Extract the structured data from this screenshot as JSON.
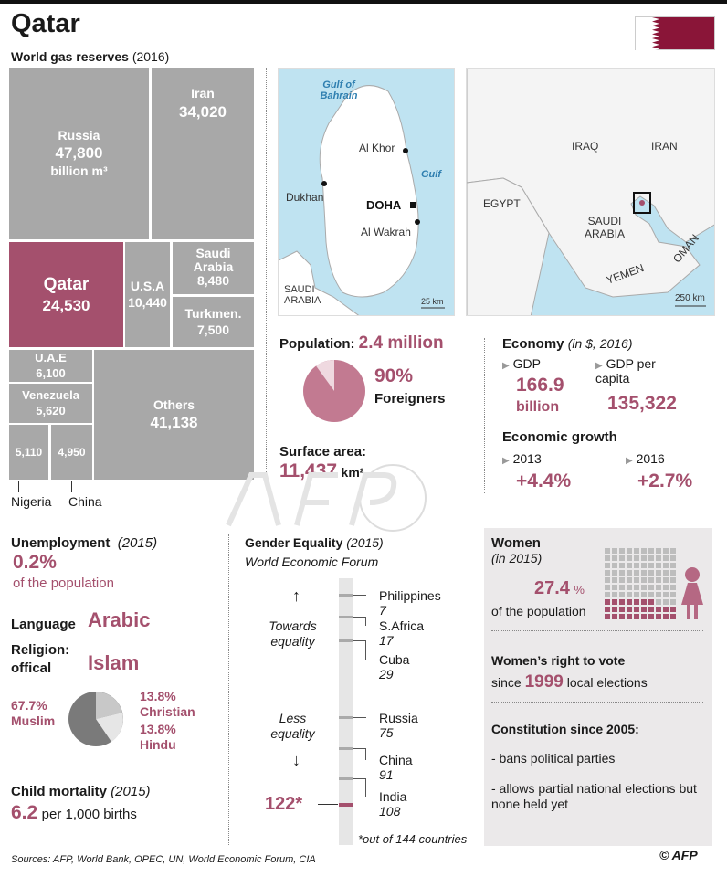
{
  "title": "Qatar",
  "gas": {
    "heading": "World gas reserves",
    "year": "(2016)",
    "unit": "billion m³",
    "cells": [
      {
        "name": "Russia",
        "value": "47,800"
      },
      {
        "name": "Iran",
        "value": "34,020"
      },
      {
        "name": "Qatar",
        "value": "24,530"
      },
      {
        "name": "U.S.A",
        "value": "10,440"
      },
      {
        "name": "Saudi Arabia",
        "value": "8,480"
      },
      {
        "name": "Turkmen.",
        "value": "7,500"
      },
      {
        "name": "U.A.E",
        "value": "6,100"
      },
      {
        "name": "Venezuela",
        "value": "5,620"
      },
      {
        "name": "Nigeria",
        "value": "5,110"
      },
      {
        "name": "China",
        "value": "4,950"
      },
      {
        "name": "Others",
        "value": "41,138"
      }
    ]
  },
  "map_local": {
    "labels": [
      "Gulf of Bahrain",
      "Al Khor",
      "Gulf",
      "Dukhan",
      "DOHA",
      "Al Wakrah",
      "SAUDI ARABIA"
    ],
    "scale": "25 km"
  },
  "map_region": {
    "labels": [
      "IRAQ",
      "IRAN",
      "EGYPT",
      "SAUDI ARABIA",
      "OMAN",
      "YEMEN"
    ],
    "scale": "250 km"
  },
  "population": {
    "label": "Population:",
    "value": "2.4 million",
    "pct": "90%",
    "pct_label": "Foreigners",
    "foreign_fraction": 0.9
  },
  "surface": {
    "label": "Surface area:",
    "value": "11,437",
    "unit": "km²"
  },
  "economy": {
    "title": "Economy",
    "sub": "(in $, 2016)",
    "gdp_label": "GDP",
    "gdp_value": "166.9",
    "gdp_unit": "billion",
    "gdppc_label": "GDP per capita",
    "gdppc_value": "135,322",
    "growth_title": "Economic growth",
    "y1": "2013",
    "v1": "+4.4%",
    "y2": "2016",
    "v2": "+2.7%"
  },
  "unemployment": {
    "title": "Unemployment",
    "year": "(2015)",
    "value": "0.2%",
    "desc": "of the population"
  },
  "language": {
    "label": "Language",
    "value": "Arabic"
  },
  "religion": {
    "label": "Religion: offical",
    "value": "Islam",
    "muslim_pct": "67.7%",
    "muslim": "Muslim",
    "christian_pct": "13.8%",
    "christian": "Christian",
    "hindu_pct": "13.8%",
    "hindu": "Hindu"
  },
  "child": {
    "title": "Child mortality",
    "year": "(2015)",
    "value": "6.2",
    "desc": "per 1,000 births"
  },
  "gender": {
    "title": "Gender Equality",
    "year": "(2015)",
    "source": "World Economic Forum",
    "up": "Towards equality",
    "down": "Less equality",
    "qatar_rank": "122*",
    "note": "*out of 144 countries",
    "countries": [
      {
        "name": "Philippines",
        "rank": "7"
      },
      {
        "name": "S.Africa",
        "rank": "17"
      },
      {
        "name": "Cuba",
        "rank": "29"
      },
      {
        "name": "Russia",
        "rank": "75"
      },
      {
        "name": "China",
        "rank": "91"
      },
      {
        "name": "India",
        "rank": "108"
      }
    ]
  },
  "women": {
    "title": "Women",
    "year": "(in 2015)",
    "value": "27.4",
    "pct": "%",
    "desc": "of the population",
    "fraction": 0.274,
    "vote_title": "Women’s right to vote",
    "vote_pre": "since",
    "vote_year": "1999",
    "vote_post": "local elections",
    "const_title": "Constitution since 2005:",
    "const_items": [
      "- bans political parties",
      "- allows partial national elections but none held yet"
    ]
  },
  "sources": "Sources:  AFP, World Bank, OPEC, UN, World Economic Forum, CIA",
  "credit": "© AFP",
  "colors": {
    "accent": "#a4506d",
    "gray": "#a8a8a8"
  }
}
